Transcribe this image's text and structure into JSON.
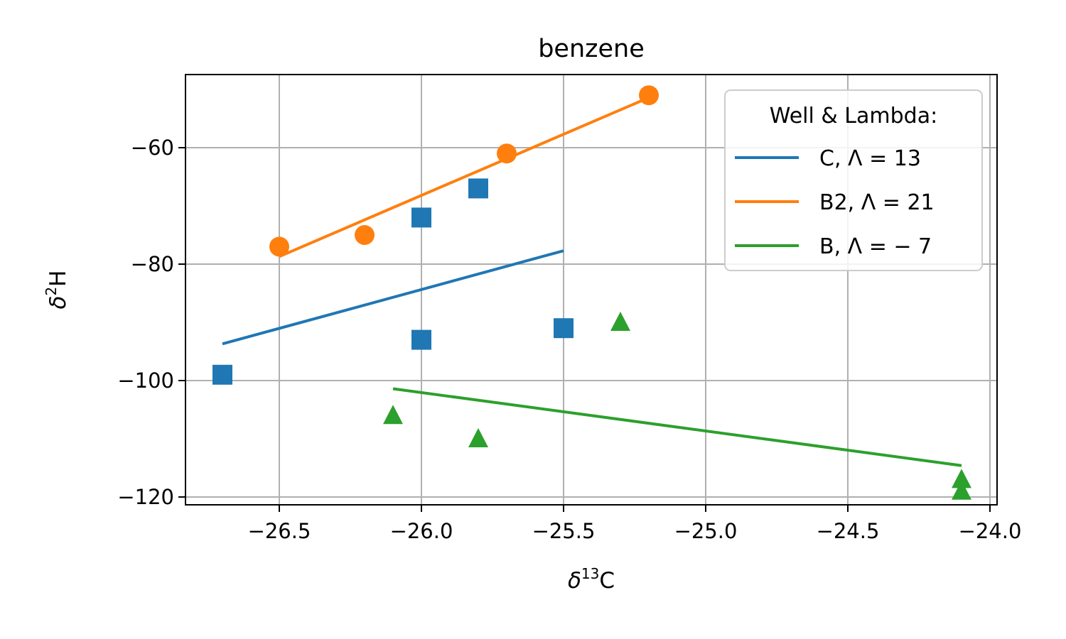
{
  "chart_data": {
    "type": "scatter",
    "title": "benzene",
    "xlabel": {
      "base": "δ",
      "sup": "13",
      "tail": "C"
    },
    "ylabel": {
      "base": "δ",
      "sup": "2",
      "tail": "H"
    },
    "xlim": [
      -26.83,
      -23.97
    ],
    "ylim": [
      -121.3,
      -48.0
    ],
    "xticks": [
      -26.5,
      -26.0,
      -25.5,
      -25.0,
      -24.5,
      -24.0
    ],
    "xtick_labels": [
      "−26.5",
      "−26.0",
      "−25.5",
      "−25.0",
      "−24.5",
      "−24.0"
    ],
    "yticks": [
      -120,
      -100,
      -80,
      -60
    ],
    "ytick_labels": [
      "−120",
      "−100",
      "−80",
      "−60"
    ],
    "grid": true,
    "legend": {
      "title": "Well & Lambda:",
      "position": "upper right",
      "entries": [
        {
          "well": "C",
          "sym": "Λ",
          "value": "13"
        },
        {
          "well": "B2",
          "sym": "Λ",
          "value": "21"
        },
        {
          "well": "B",
          "sym": "Λ",
          "value": "− 7"
        }
      ]
    },
    "series": [
      {
        "name": "C",
        "color": "#1f77b4",
        "marker": "square",
        "points": [
          [
            -26.7,
            -99
          ],
          [
            -26.0,
            -72
          ],
          [
            -26.0,
            -93
          ],
          [
            -25.8,
            -67
          ],
          [
            -25.5,
            -91
          ]
        ],
        "fit": [
          [
            -26.7,
            -93.7
          ],
          [
            -25.5,
            -77.7
          ]
        ]
      },
      {
        "name": "B2",
        "color": "#ff7f0e",
        "marker": "circle",
        "points": [
          [
            -26.5,
            -77
          ],
          [
            -26.2,
            -75
          ],
          [
            -25.7,
            -61
          ],
          [
            -25.2,
            -51
          ]
        ],
        "fit": [
          [
            -26.5,
            -78.7
          ],
          [
            -25.2,
            -51.4
          ]
        ]
      },
      {
        "name": "B",
        "color": "#2ca02c",
        "marker": "triangle",
        "points": [
          [
            -26.1,
            -106
          ],
          [
            -25.8,
            -110
          ],
          [
            -25.3,
            -90
          ],
          [
            -24.1,
            -117
          ],
          [
            -24.1,
            -119
          ]
        ],
        "fit": [
          [
            -26.1,
            -101.4
          ],
          [
            -24.1,
            -114.6
          ]
        ]
      }
    ]
  }
}
